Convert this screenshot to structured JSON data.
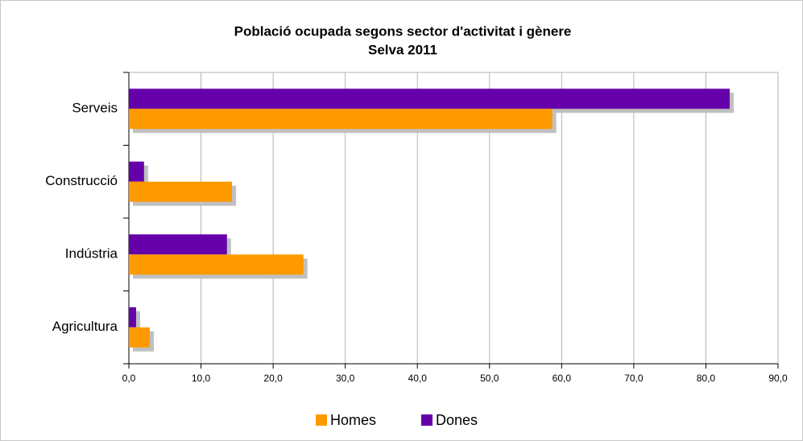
{
  "chart_data": {
    "type": "bar",
    "orientation": "horizontal",
    "title": "Població ocupada segons sector d'activitat i gènere",
    "subtitle": "Selva 2011",
    "categories": [
      "Serveis",
      "Construcció",
      "Indústria",
      "Agricultura"
    ],
    "series": [
      {
        "name": "Homes",
        "color": "#ff9900",
        "values": [
          58.7,
          14.3,
          24.2,
          2.9
        ]
      },
      {
        "name": "Dones",
        "color": "#6600aa",
        "values": [
          83.3,
          2.1,
          13.6,
          1.0
        ]
      }
    ],
    "xlim": [
      0,
      90
    ],
    "xticks": [
      {
        "value": 0,
        "label": "0,0"
      },
      {
        "value": 10,
        "label": "10,0"
      },
      {
        "value": 20,
        "label": "20,0"
      },
      {
        "value": 30,
        "label": "30,0"
      },
      {
        "value": 40,
        "label": "40,0"
      },
      {
        "value": 50,
        "label": "50,0"
      },
      {
        "value": 60,
        "label": "60,0"
      },
      {
        "value": 70,
        "label": "70,0"
      },
      {
        "value": 80,
        "label": "80,0"
      },
      {
        "value": 90,
        "label": "90,0"
      }
    ],
    "grid": true,
    "legend": "bottom"
  }
}
